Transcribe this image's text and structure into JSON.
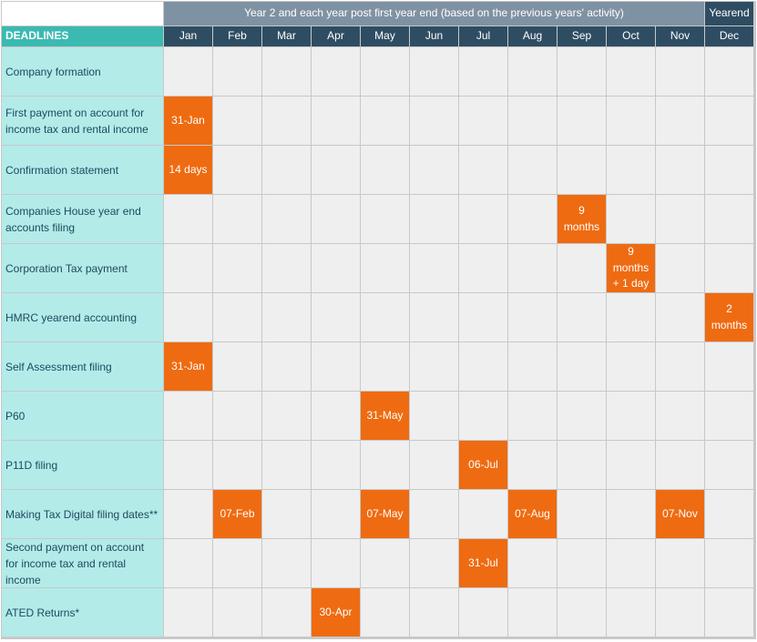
{
  "header": {
    "period_label": "Year 2 and each year post first year end (based on the previous years' activity)",
    "yearend_label": "Yearend",
    "deadlines_label": "DEADLINES"
  },
  "months": [
    "Jan",
    "Feb",
    "Mar",
    "Apr",
    "May",
    "Jun",
    "Jul",
    "Aug",
    "Sep",
    "Oct",
    "Nov",
    "Dec"
  ],
  "rows": [
    {
      "label": "Company formation",
      "entries": {}
    },
    {
      "label": "First payment on account for income tax and rental income",
      "entries": {
        "0": "31-Jan"
      }
    },
    {
      "label": "Confirmation statement",
      "entries": {
        "0": "14 days"
      }
    },
    {
      "label": "Companies House year end accounts filing",
      "entries": {
        "8": "9 months"
      }
    },
    {
      "label": "Corporation Tax payment",
      "entries": {
        "9": "9 months + 1 day"
      }
    },
    {
      "label": "HMRC yearend accounting",
      "entries": {
        "11": "2 months"
      }
    },
    {
      "label": "Self Assessment filing",
      "entries": {
        "0": "31-Jan"
      }
    },
    {
      "label": "P60",
      "entries": {
        "4": "31-May"
      }
    },
    {
      "label": "P11D filing",
      "entries": {
        "6": "06-Jul"
      }
    },
    {
      "label": "Making Tax Digital filing dates**",
      "entries": {
        "1": "07-Feb",
        "4": "07-May",
        "7": "07-Aug",
        "10": "07-Nov"
      }
    },
    {
      "label": "Second payment on account for income tax and rental income",
      "entries": {
        "6": "31-Jul"
      }
    },
    {
      "label": "ATED Returns*",
      "entries": {
        "3": "30-Apr"
      }
    }
  ],
  "colors": {
    "highlight": "#ef6b11",
    "label_bg": "#b3ebe9",
    "header_dark": "#2e4d63",
    "header_grey": "#7f92a3",
    "deadlines_bg": "#3bbab1",
    "empty_cell": "#efefef"
  }
}
